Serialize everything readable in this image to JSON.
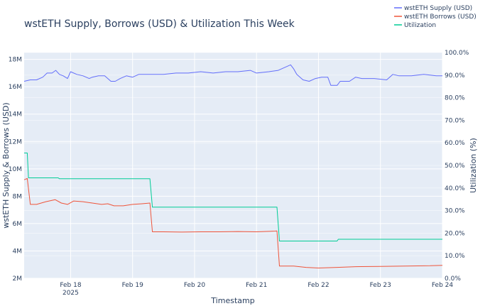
{
  "chart_data": {
    "type": "line",
    "title": "wstETH Supply, Borrows (USD) & Utilization This Week",
    "xlabel": "Timestamp",
    "ylabel": "wstETH Supply & Borrows (USD)",
    "ylabel_right": "Utilization (%)",
    "x_ticks": [
      "Feb 18",
      "Feb 19",
      "Feb 20",
      "Feb 21",
      "Feb 22",
      "Feb 23",
      "Feb 24"
    ],
    "x_year_label": "2025",
    "x_range": [
      17.25,
      24.0
    ],
    "y_ticks": [
      "2M",
      "4M",
      "6M",
      "8M",
      "10M",
      "12M",
      "14M",
      "16M",
      "18M"
    ],
    "ylim": [
      2000000,
      18500000
    ],
    "y2_ticks": [
      "0.0%",
      "10.0%",
      "20.0%",
      "30.0%",
      "40.0%",
      "50.0%",
      "60.0%",
      "70.0%",
      "80.0%",
      "90.0%",
      "100.0%"
    ],
    "y2lim": [
      0,
      100
    ],
    "legend": [
      "wstETH Supply (USD)",
      "wstETH Borrows (USD)",
      "Utilization"
    ],
    "legend_position": "top-right",
    "colors": {
      "supply": "#636efa",
      "borrows": "#ef553b",
      "utilization": "#00cc96"
    },
    "series": [
      {
        "name": "wstETH Supply (USD)",
        "axis": "left",
        "x": [
          17.25,
          17.35,
          17.45,
          17.55,
          17.62,
          17.7,
          17.76,
          17.82,
          17.88,
          17.95,
          18.0,
          18.1,
          18.2,
          18.3,
          18.35,
          18.45,
          18.55,
          18.65,
          18.72,
          18.8,
          18.9,
          19.0,
          19.1,
          19.2,
          19.3,
          19.5,
          19.7,
          19.9,
          20.1,
          20.3,
          20.5,
          20.7,
          20.9,
          21.0,
          21.2,
          21.35,
          21.45,
          21.55,
          21.6,
          21.65,
          21.75,
          21.85,
          21.95,
          22.05,
          22.15,
          22.2,
          22.3,
          22.35,
          22.5,
          22.6,
          22.7,
          22.9,
          23.1,
          23.2,
          23.3,
          23.5,
          23.7,
          23.9,
          24.0
        ],
        "values": [
          16400000,
          16500000,
          16500000,
          16700000,
          17000000,
          17000000,
          17200000,
          16900000,
          16800000,
          16600000,
          17100000,
          16900000,
          16800000,
          16600000,
          16700000,
          16800000,
          16800000,
          16400000,
          16400000,
          16600000,
          16800000,
          16700000,
          16900000,
          16900000,
          16900000,
          16900000,
          17000000,
          17000000,
          17100000,
          17000000,
          17100000,
          17100000,
          17200000,
          17000000,
          17100000,
          17200000,
          17400000,
          17600000,
          17300000,
          16900000,
          16500000,
          16400000,
          16600000,
          16700000,
          16700000,
          16100000,
          16100000,
          16400000,
          16400000,
          16700000,
          16600000,
          16600000,
          16500000,
          16900000,
          16800000,
          16800000,
          16900000,
          16800000,
          16800000
        ]
      },
      {
        "name": "wstETH Borrows (USD)",
        "axis": "left",
        "x": [
          17.25,
          17.3,
          17.35,
          17.45,
          17.6,
          17.75,
          17.85,
          17.95,
          18.05,
          18.2,
          18.35,
          18.5,
          18.6,
          18.7,
          18.85,
          19.0,
          19.15,
          19.28,
          19.32,
          19.5,
          19.8,
          20.1,
          20.4,
          20.7,
          21.0,
          21.3,
          21.33,
          21.37,
          21.6,
          21.8,
          22.0,
          22.3,
          22.6,
          23.0,
          23.4,
          23.8,
          24.0
        ],
        "values": [
          9200000,
          9300000,
          7400000,
          7400000,
          7600000,
          7750000,
          7500000,
          7400000,
          7650000,
          7600000,
          7500000,
          7400000,
          7450000,
          7300000,
          7300000,
          7400000,
          7450000,
          7500000,
          5400000,
          5400000,
          5380000,
          5400000,
          5400000,
          5420000,
          5400000,
          5450000,
          5460000,
          2900000,
          2900000,
          2800000,
          2750000,
          2800000,
          2850000,
          2870000,
          2900000,
          2920000,
          2950000
        ]
      },
      {
        "name": "Utilization",
        "axis": "right",
        "x": [
          17.25,
          17.3,
          17.32,
          17.8,
          17.82,
          19.28,
          19.32,
          21.33,
          21.37,
          22.3,
          22.32,
          24.0
        ],
        "values": [
          55.5,
          55.5,
          44.5,
          44.5,
          44.1,
          44.1,
          31.5,
          31.5,
          16.5,
          16.5,
          17.3,
          17.3
        ]
      }
    ]
  }
}
